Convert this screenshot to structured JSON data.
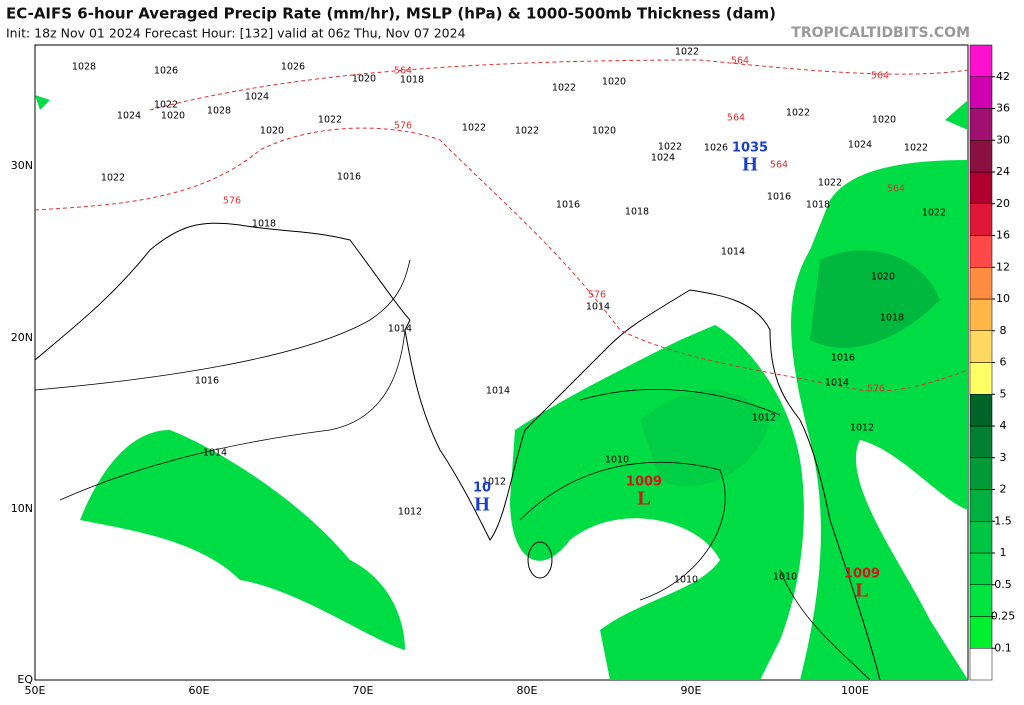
{
  "header": {
    "title": "EC-AIFS 6-hour Averaged Precip Rate (mm/hr), MSLP (hPa) & 1000-500mb Thickness (dam)",
    "subtitle": "Init: 18z Nov 01 2024   Forecast Hour: [132]   valid at 06z Thu, Nov 07 2024",
    "source": "TROPICALTIDBITS.COM"
  },
  "axes": {
    "lon_labels": [
      "50E",
      "60E",
      "70E",
      "80E",
      "90E",
      "100E"
    ],
    "lat_labels": [
      "EQ",
      "10N",
      "20N",
      "30N"
    ]
  },
  "colorbar": {
    "ticks": [
      0.1,
      0.25,
      0.5,
      1,
      1.5,
      2,
      3,
      4,
      5,
      6,
      8,
      10,
      12,
      16,
      20,
      24,
      30,
      36,
      42
    ],
    "colors": [
      "#ffffff",
      "#00f030",
      "#00e440",
      "#00d444",
      "#00c444",
      "#00b040",
      "#009a38",
      "#008030",
      "#006428",
      "#ffff66",
      "#ffd860",
      "#ffb848",
      "#ff8c40",
      "#ff4848",
      "#e01838",
      "#b00030",
      "#8a1040",
      "#a01070",
      "#d000b0",
      "#ff10d0"
    ]
  },
  "pressure_labels": [
    1028,
    1026,
    1026,
    1024,
    1022,
    1024,
    1020,
    1028,
    1020,
    1022,
    1020,
    1018,
    1022,
    1022,
    1022,
    1020,
    1022,
    1020,
    1022,
    1024,
    1026,
    1022,
    1020,
    1024,
    1022,
    1022,
    1020,
    1018,
    1016,
    1014,
    1012,
    1012,
    1014,
    1014,
    1016,
    1018,
    1016,
    1018,
    1016,
    1018,
    1022,
    1014,
    1016,
    1014,
    1014,
    1012,
    1012,
    1010,
    1010,
    1010,
    1022
  ],
  "thickness_labels": [
    564,
    564,
    564,
    564,
    564,
    576,
    576,
    576,
    576,
    564
  ],
  "centers": [
    {
      "kind": "H",
      "value": "1035"
    },
    {
      "kind": "H",
      "value": "10"
    },
    {
      "kind": "L",
      "value": "1009"
    },
    {
      "kind": "L",
      "value": "1009"
    }
  ]
}
